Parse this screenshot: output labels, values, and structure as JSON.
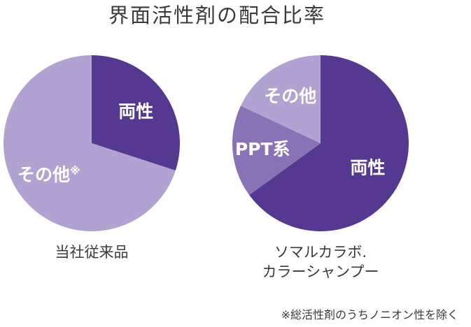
{
  "chart_data": {
    "title": "界面活性剤の配合比率",
    "footnote": "※総活性剤のうちノニオン性を除く",
    "colors": {
      "amphoteric": "#553990",
      "ppt": "#8a72b6",
      "other": "#b1a3d1"
    },
    "charts": [
      {
        "type": "pie",
        "caption": [
          "当社従来品"
        ],
        "slices": [
          {
            "key": "amphoteric",
            "label": "両性",
            "value": 30,
            "color": "#553990"
          },
          {
            "key": "other",
            "label": "その他",
            "mark": "※",
            "value": 70,
            "color": "#b1a3d1"
          }
        ]
      },
      {
        "type": "pie",
        "caption": [
          "ソマルカラボ.",
          "カラーシャンプー"
        ],
        "slices": [
          {
            "key": "amphoteric",
            "label": "両性",
            "value": 65,
            "color": "#553990"
          },
          {
            "key": "ppt",
            "label": "PPT系",
            "value": 17,
            "color": "#8a72b6"
          },
          {
            "key": "other",
            "label": "その他",
            "value": 18,
            "color": "#b1a3d1"
          }
        ]
      }
    ]
  }
}
